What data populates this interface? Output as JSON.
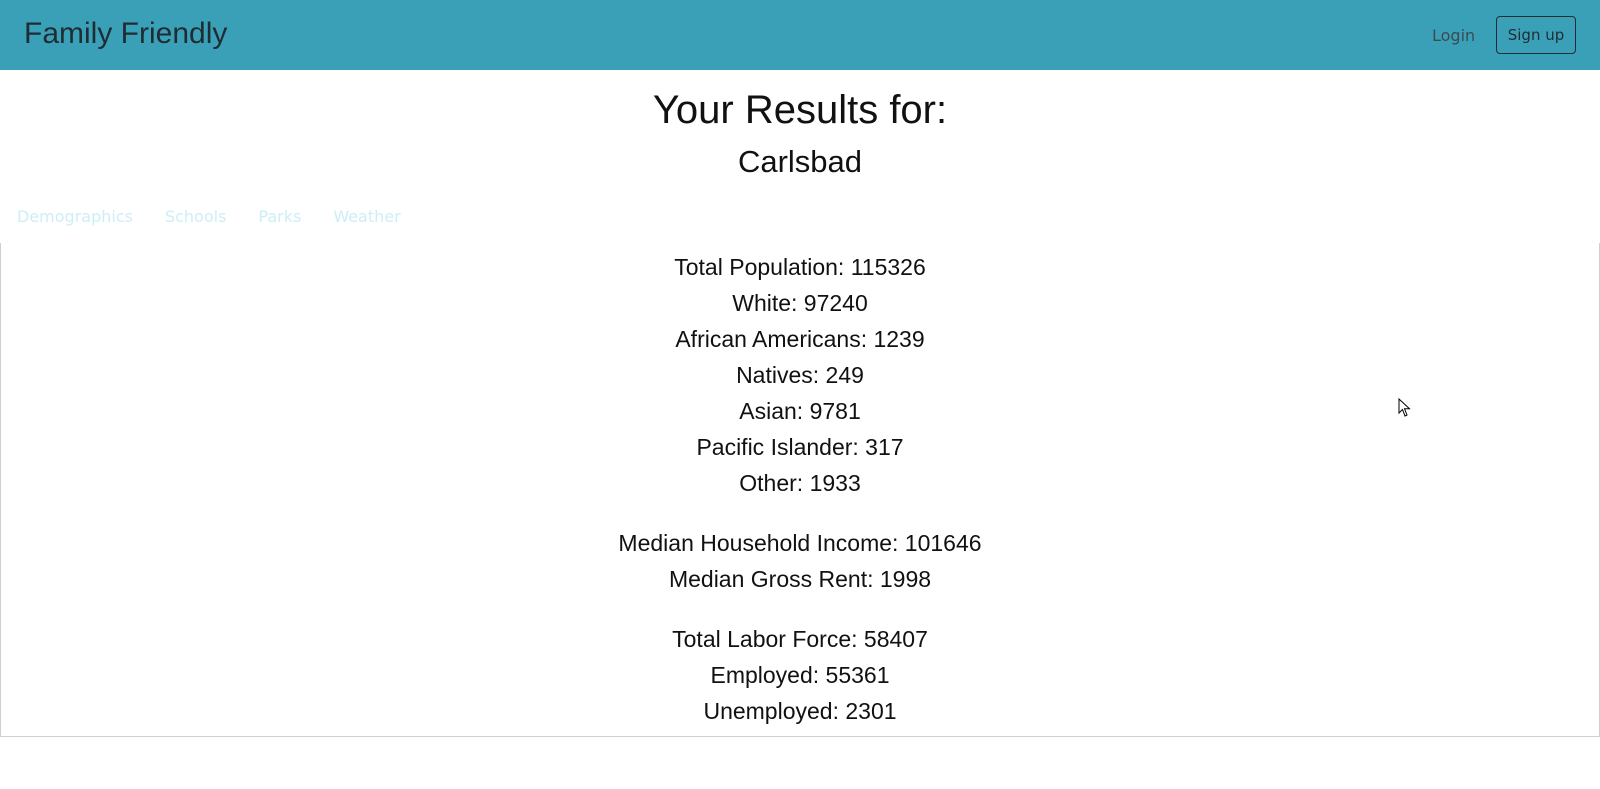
{
  "navbar": {
    "brand": "Family Friendly",
    "login_label": "Login",
    "signup_label": "Sign up"
  },
  "header": {
    "title": "Your Results for:",
    "city": "Carlsbad"
  },
  "tabs": [
    {
      "label": "Demographics"
    },
    {
      "label": "Schools"
    },
    {
      "label": "Parks"
    },
    {
      "label": "Weather"
    }
  ],
  "demographics": {
    "population": [
      "Total Population: 115326",
      "White: 97240",
      "African Americans: 1239",
      "Natives: 249",
      "Asian: 9781",
      "Pacific Islander: 317",
      "Other: 1933"
    ],
    "income": [
      "Median Household Income: 101646",
      "Median Gross Rent: 1998"
    ],
    "labor": [
      "Total Labor Force: 58407",
      "Employed: 55361",
      "Unemployed: 2301"
    ]
  },
  "colors": {
    "navbar_bg": "#3aa0b8",
    "tab_text": "#cdeef6"
  }
}
